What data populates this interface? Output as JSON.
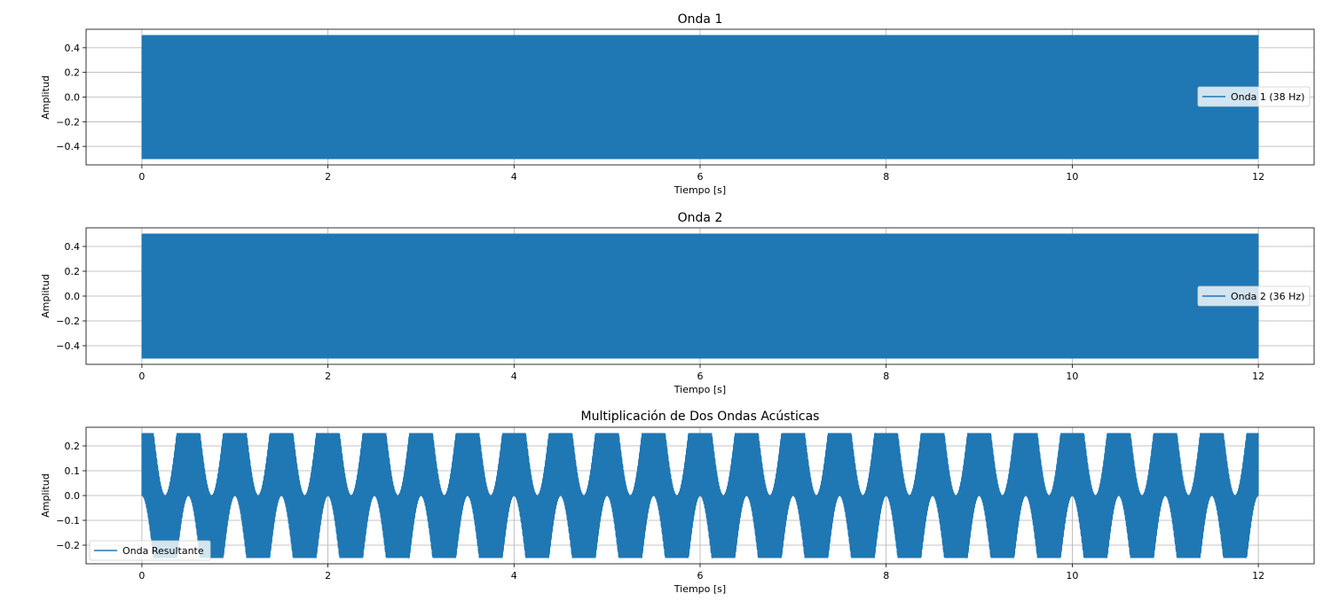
{
  "chart_data": [
    {
      "type": "line",
      "title": "Onda 1",
      "xlabel": "Tiempo [s]",
      "ylabel": "Amplitud",
      "xlim": [
        -0.6,
        12.6
      ],
      "ylim": [
        -0.55,
        0.55
      ],
      "xticks": [
        0,
        2,
        4,
        6,
        8,
        10,
        12
      ],
      "xtick_labels": [
        "0",
        "2",
        "4",
        "6",
        "8",
        "10",
        "12"
      ],
      "yticks": [
        -0.4,
        -0.2,
        0.0,
        0.2,
        0.4
      ],
      "ytick_labels": [
        "−0.4",
        "−0.2",
        "0.0",
        "0.2",
        "0.4"
      ],
      "grid": true,
      "legend_position": "center-right",
      "series": [
        {
          "name": "Onda 1 (38 Hz)",
          "color": "#1f77b4",
          "function": "0.5*sin(2*pi*38*t)",
          "frequency_hz": 38,
          "amplitude": 0.5,
          "t_range": [
            0,
            12
          ]
        }
      ]
    },
    {
      "type": "line",
      "title": "Onda 2",
      "xlabel": "Tiempo [s]",
      "ylabel": "Amplitud",
      "xlim": [
        -0.6,
        12.6
      ],
      "ylim": [
        -0.55,
        0.55
      ],
      "xticks": [
        0,
        2,
        4,
        6,
        8,
        10,
        12
      ],
      "xtick_labels": [
        "0",
        "2",
        "4",
        "6",
        "8",
        "10",
        "12"
      ],
      "yticks": [
        -0.4,
        -0.2,
        0.0,
        0.2,
        0.4
      ],
      "ytick_labels": [
        "−0.4",
        "−0.2",
        "0.0",
        "0.2",
        "0.4"
      ],
      "grid": true,
      "legend_position": "center-right",
      "series": [
        {
          "name": "Onda 2 (36 Hz)",
          "color": "#1f77b4",
          "function": "0.5*sin(2*pi*36*t)",
          "frequency_hz": 36,
          "amplitude": 0.5,
          "t_range": [
            0,
            12
          ]
        }
      ]
    },
    {
      "type": "line",
      "title": "Multiplicación de Dos Ondas Acústicas",
      "xlabel": "Tiempo [s]",
      "ylabel": "Amplitud",
      "xlim": [
        -0.6,
        12.6
      ],
      "ylim": [
        -0.275,
        0.275
      ],
      "xticks": [
        0,
        2,
        4,
        6,
        8,
        10,
        12
      ],
      "xtick_labels": [
        "0",
        "2",
        "4",
        "6",
        "8",
        "10",
        "12"
      ],
      "yticks": [
        -0.2,
        -0.1,
        0.0,
        0.1,
        0.2
      ],
      "ytick_labels": [
        "−0.2",
        "−0.1",
        "0.0",
        "0.1",
        "0.2"
      ],
      "grid": true,
      "legend_position": "lower-left",
      "series": [
        {
          "name": "Onda Resultante",
          "color": "#1f77b4",
          "function": "0.5*sin(2*pi*38*t) * 0.5*sin(2*pi*36*t)",
          "envelope_period_s": 0.5,
          "carrier_frequency_hz": 74,
          "amplitude": 0.25,
          "t_range": [
            0,
            12
          ]
        }
      ]
    }
  ]
}
